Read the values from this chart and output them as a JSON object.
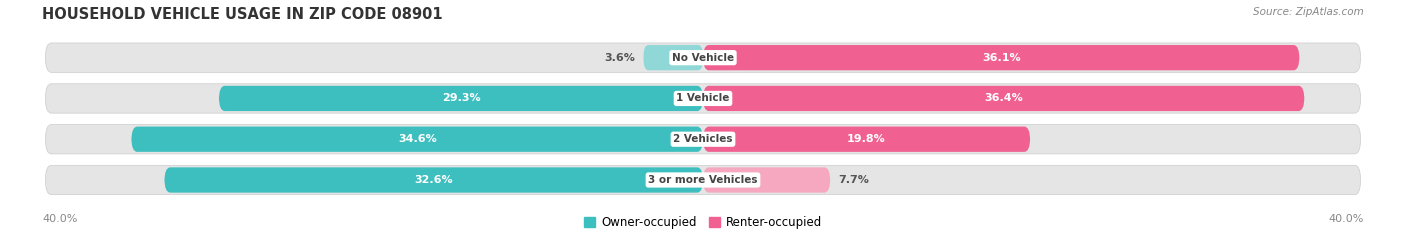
{
  "title": "HOUSEHOLD VEHICLE USAGE IN ZIP CODE 08901",
  "source": "Source: ZipAtlas.com",
  "categories": [
    "No Vehicle",
    "1 Vehicle",
    "2 Vehicles",
    "3 or more Vehicles"
  ],
  "owner_values": [
    3.6,
    29.3,
    34.6,
    32.6
  ],
  "renter_values": [
    36.1,
    36.4,
    19.8,
    7.7
  ],
  "owner_color": "#3DBFBF",
  "renter_color": "#F06090",
  "owner_color_light": "#90D8D8",
  "renter_color_light": "#F5A8C0",
  "axis_max": 40.0,
  "bar_height": 0.62,
  "bg_color": "#f2f2f2",
  "bar_bg_color": "#e5e5e5",
  "title_fontsize": 10.5,
  "source_fontsize": 7.5,
  "label_fontsize": 8,
  "cat_fontsize": 7.5,
  "legend_label_owner": "Owner-occupied",
  "legend_label_renter": "Renter-occupied",
  "axis_label": "40.0%",
  "small_threshold": 10
}
